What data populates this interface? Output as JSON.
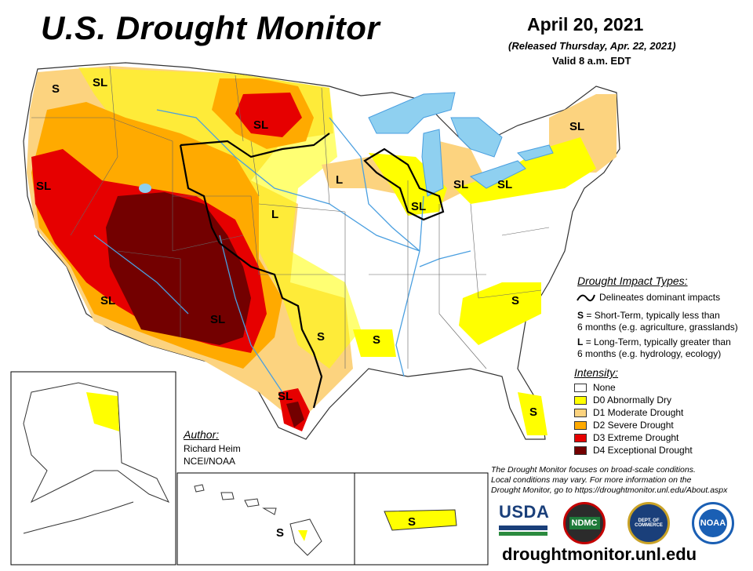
{
  "header": {
    "title": "U.S. Drought Monitor",
    "date": "April 20, 2021",
    "released": "(Released Thursday, Apr. 22, 2021)",
    "valid": "Valid 8 a.m. EDT"
  },
  "impact_types": {
    "heading": "Drought Impact Types:",
    "delineates": "Delineates dominant impacts",
    "short_term_key": "S",
    "short_term_text": "= Short-Term, typically less than",
    "short_term_text2": "6 months (e.g. agriculture, grasslands)",
    "long_term_key": "L",
    "long_term_text": "= Long-Term, typically greater than",
    "long_term_text2": "6 months (e.g. hydrology, ecology)"
  },
  "intensity": {
    "heading": "Intensity:",
    "levels": [
      {
        "label": "None",
        "color": "#ffffff"
      },
      {
        "label": "D0 Abnormally Dry",
        "color": "#ffff00"
      },
      {
        "label": "D1 Moderate Drought",
        "color": "#fcd37f"
      },
      {
        "label": "D2 Severe Drought",
        "color": "#ffaa00"
      },
      {
        "label": "D3 Extreme Drought",
        "color": "#e60000"
      },
      {
        "label": "D4 Exceptional Drought",
        "color": "#730000"
      }
    ]
  },
  "author": {
    "heading": "Author:",
    "name": "Richard Heim",
    "org": "NCEI/NOAA"
  },
  "note": {
    "line1": "The Drought Monitor focuses on broad-scale conditions.",
    "line2": "Local conditions may vary. For more information on the",
    "line3": "Drought Monitor, go to https://droughtmonitor.unl.edu/About.aspx"
  },
  "map_labels": {
    "wa_s": "S",
    "nw_sl": "SL",
    "mt_sl": "SL",
    "ca_sl": "SL",
    "az_sl": "SL",
    "nm_sl": "SL",
    "tx_sl": "SL",
    "tx_s": "S",
    "la_s": "S",
    "ks_l": "L",
    "ia_l": "L",
    "il_sl": "SL",
    "mi_sl": "SL",
    "oh_sl": "SL",
    "ny_sl": "SL",
    "sc_s": "S",
    "fl_s": "S",
    "hi_s": "S",
    "pr_s": "S"
  },
  "logos": {
    "usda": "USDA",
    "ndmc": "NDMC",
    "commerce": "DEPT. OF COMMERCE",
    "noaa": "NOAA"
  },
  "site": "droughtmonitor.unl.edu",
  "colors": {
    "none": "#ffffff",
    "d0": "#ffff00",
    "d1": "#fcd37f",
    "d2": "#ffaa00",
    "d3": "#e60000",
    "d4": "#730000",
    "water": "#8fd0f0",
    "rivers": "#4a9fe0"
  }
}
